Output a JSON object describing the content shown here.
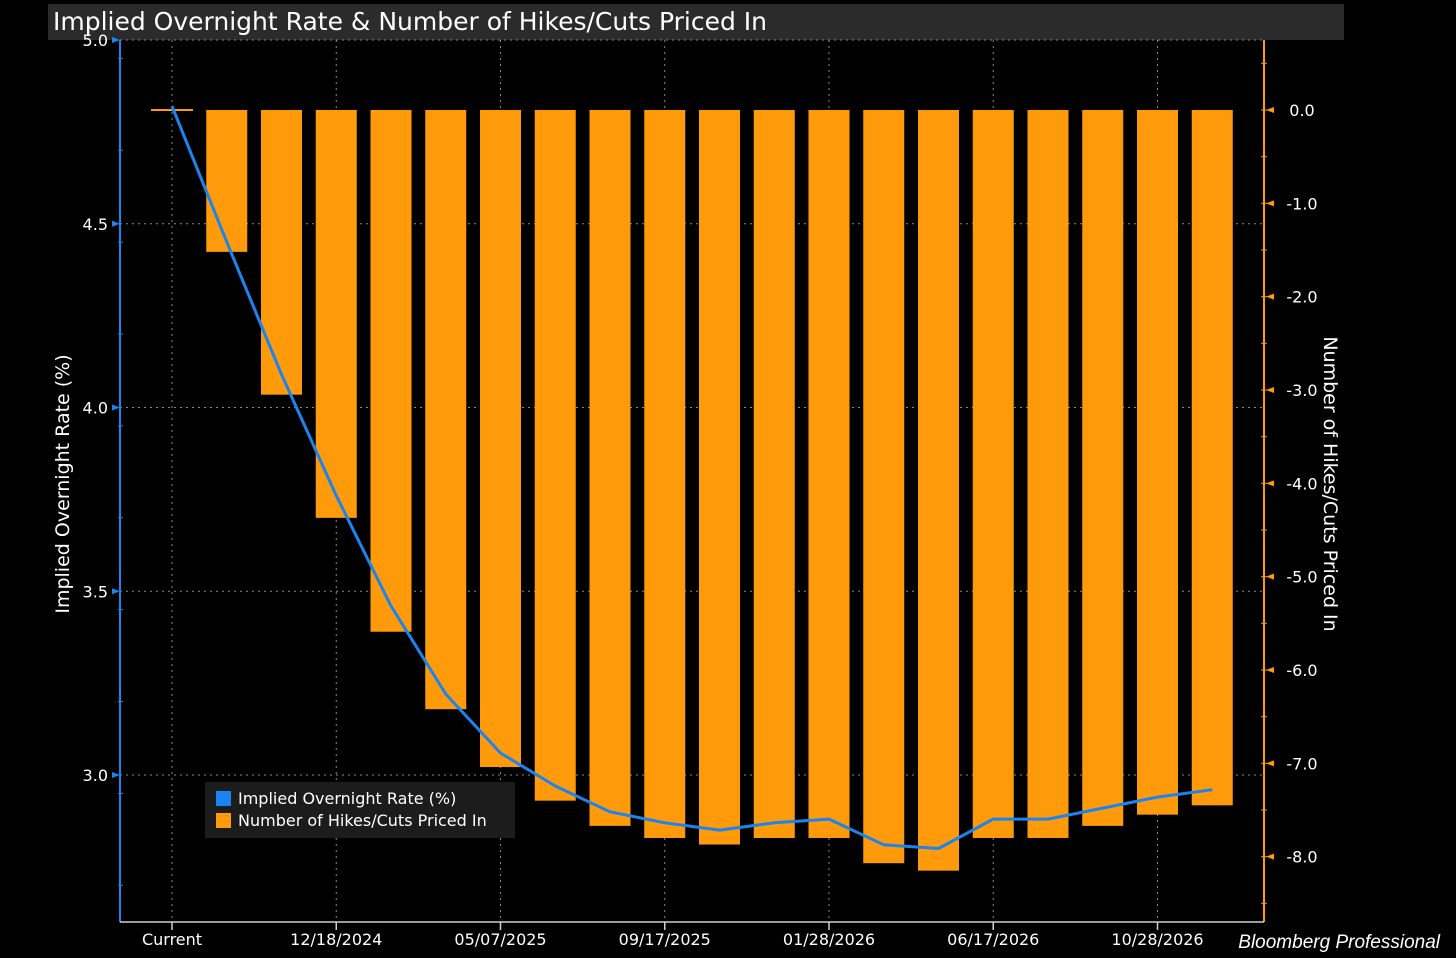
{
  "title": "Implied Overnight Rate & Number of Hikes/Cuts Priced In",
  "credit": "Bloomberg Professional",
  "colors": {
    "rate": "#1a85f0",
    "hikes": "#ff9a0a",
    "grid": "#8a8a8a",
    "right_axis": "#ff9a0a",
    "left_axis": "#1a85f0"
  },
  "chart_data": {
    "type": "bar",
    "x_tick_labels": [
      "Current",
      "12/18/2024",
      "05/07/2025",
      "09/17/2025",
      "01/28/2026",
      "06/17/2026",
      "10/28/2026"
    ],
    "ylabel_left": "Implied Overnight Rate (%)",
    "ylabel_right": "Number of Hikes/Cuts Priced In",
    "ylim_left": [
      2.6,
      5.0
    ],
    "ylim_right": [
      -8.7,
      0.75
    ],
    "yticks_left": [
      "5.0",
      "4.5",
      "4.0",
      "3.5",
      "3.0"
    ],
    "yticks_right": [
      "0.0",
      "-1.0",
      "-2.0",
      "-3.0",
      "-4.0",
      "-5.0",
      "-6.0",
      "-7.0",
      "-8.0"
    ],
    "grid": true,
    "legend_position": "bottom-left",
    "series": [
      {
        "name": "Implied Overnight Rate (%)",
        "type": "line",
        "values": [
          4.82,
          4.45,
          4.09,
          3.76,
          3.46,
          3.22,
          3.06,
          2.97,
          2.9,
          2.87,
          2.85,
          2.87,
          2.88,
          2.81,
          2.8,
          2.88,
          2.88,
          2.91,
          2.94,
          2.96
        ]
      },
      {
        "name": "Number of Hikes/Cuts Priced In",
        "type": "bar",
        "values": [
          0,
          -1.52,
          -3.05,
          -4.37,
          -5.59,
          -6.42,
          -7.04,
          -7.4,
          -7.67,
          -7.8,
          -7.87,
          -7.8,
          -7.8,
          -8.07,
          -8.15,
          -7.8,
          -7.8,
          -7.67,
          -7.55,
          -7.45
        ]
      }
    ]
  }
}
